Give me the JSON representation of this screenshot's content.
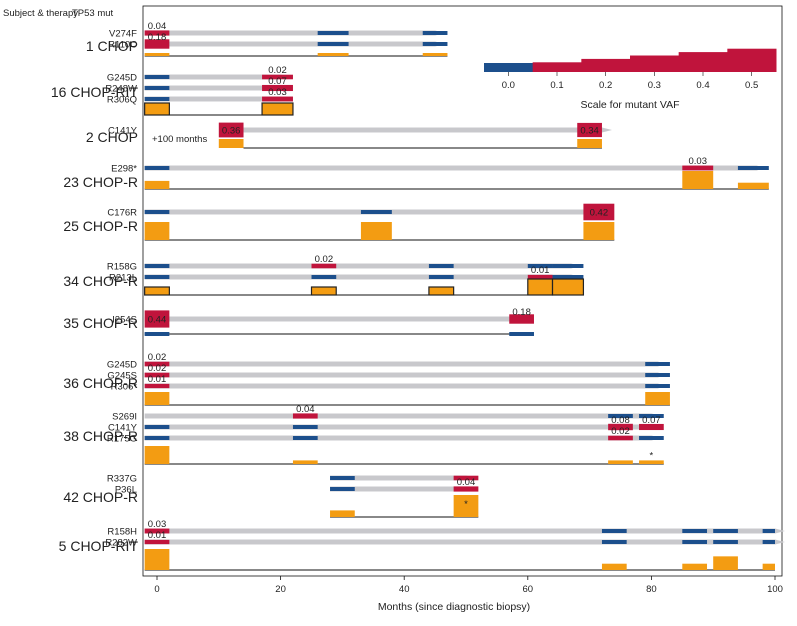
{
  "chart_data": {
    "type": "timeline",
    "header": {
      "subject": "Subject & therapy",
      "mutation": "TP53 mut"
    },
    "xlabel": "Months (since diagnostic biopsy)",
    "xlim": [
      -2,
      100
    ],
    "xticks": [
      0,
      20,
      40,
      60,
      80,
      100
    ],
    "colors": {
      "track": "#c8c8cc",
      "wt": "#1c4f8c",
      "mut": "#c0143c",
      "sample": "#f39c12",
      "axis": "#111111"
    },
    "legend": {
      "title": "Scale for mutant VAF",
      "ticks": [
        "0.0",
        "0.1",
        "0.2",
        "0.3",
        "0.4",
        "0.5"
      ],
      "tick_values": [
        0,
        0.1,
        0.2,
        0.3,
        0.4,
        0.5
      ],
      "range": [
        -0.05,
        0.55
      ],
      "steps": [
        {
          "from": -0.05,
          "to": 0.05,
          "vaf": 0
        },
        {
          "from": 0.05,
          "to": 0.15,
          "vaf": 0.05
        },
        {
          "from": 0.15,
          "to": 0.25,
          "vaf": 0.15
        },
        {
          "from": 0.25,
          "to": 0.35,
          "vaf": 0.25
        },
        {
          "from": 0.35,
          "to": 0.45,
          "vaf": 0.35
        },
        {
          "from": 0.45,
          "to": 0.55,
          "vaf": 0.45
        }
      ]
    },
    "note": "+100 months",
    "patients": [
      {
        "id": "1 CHOP",
        "end": 47,
        "rows": [
          {
            "mut": "V274F",
            "track": [
              -2,
              45
            ],
            "segs": [
              {
                "x0": -2,
                "x1": 2,
                "vaf": 0.04,
                "label": "0.04"
              },
              {
                "x0": 26,
                "x1": 31,
                "vaf": 0
              },
              {
                "x0": 43,
                "x1": 47,
                "vaf": 0
              }
            ]
          },
          {
            "mut": "R110C",
            "track": [
              -2,
              45
            ],
            "segs": [
              {
                "x0": -2,
                "x1": 2,
                "vaf": 0.18,
                "label": "0.18"
              },
              {
                "x0": 26,
                "x1": 31,
                "vaf": 0
              },
              {
                "x0": 43,
                "x1": 47,
                "vaf": 0
              }
            ]
          }
        ],
        "samples": [
          {
            "x0": -2,
            "x1": 2,
            "frac": 0.5
          },
          {
            "x0": 26,
            "x1": 31,
            "frac": 0.5
          },
          {
            "x0": 43,
            "x1": 47,
            "frac": 0.5
          }
        ]
      },
      {
        "id": "16 CHOP-RIT",
        "end": 22,
        "rows": [
          {
            "mut": "G245D",
            "track": [
              -2,
              20
            ],
            "segs": [
              {
                "x0": -2,
                "x1": 2,
                "vaf": 0
              },
              {
                "x0": 17,
                "x1": 22,
                "vaf": 0.02,
                "label": "0.02"
              }
            ]
          },
          {
            "mut": "R248W",
            "track": [
              -2,
              20
            ],
            "segs": [
              {
                "x0": -2,
                "x1": 2,
                "vaf": 0
              },
              {
                "x0": 17,
                "x1": 22,
                "vaf": 0.07,
                "label": "0.07"
              }
            ]
          },
          {
            "mut": "R306Q",
            "track": [
              -2,
              20
            ],
            "segs": [
              {
                "x0": -2,
                "x1": 2,
                "vaf": 0
              },
              {
                "x0": 17,
                "x1": 22,
                "vaf": 0.03,
                "label": "0.03"
              }
            ]
          }
        ],
        "samples": [
          {
            "x0": -2,
            "x1": 2,
            "frac": 1,
            "outline": true
          },
          {
            "x0": 17,
            "x1": 22,
            "frac": 1,
            "outline": true
          }
        ]
      },
      {
        "id": "2 CHOP",
        "start": 14,
        "end": 72,
        "rows": [
          {
            "mut": "C141Y",
            "track": [
              14,
              72
            ],
            "segs": [
              {
                "x0": 10,
                "x1": 14,
                "vaf": 0.36,
                "label": "0.36"
              },
              {
                "x0": 68,
                "x1": 72,
                "vaf": 0.34,
                "label": "0.34"
              }
            ]
          }
        ],
        "samples": [
          {
            "x0": 10,
            "x1": 14,
            "frac": 1
          },
          {
            "x0": 68,
            "x1": 72,
            "frac": 1
          }
        ]
      },
      {
        "id": "23 CHOP-R",
        "end": 99,
        "rows": [
          {
            "mut": "E298*",
            "track": [
              -2,
              97
            ],
            "segs": [
              {
                "x0": -2,
                "x1": 2,
                "vaf": 0
              },
              {
                "x0": 85,
                "x1": 90,
                "vaf": 0.03,
                "label": "0.03"
              },
              {
                "x0": 94,
                "x1": 99,
                "vaf": 0
              }
            ]
          }
        ],
        "samples": [
          {
            "x0": -2,
            "x1": 2,
            "frac": 0.45
          },
          {
            "x0": 85,
            "x1": 90,
            "frac": 1
          },
          {
            "x0": 94,
            "x1": 99,
            "frac": 0.35
          }
        ]
      },
      {
        "id": "25 CHOP-R",
        "end": 74,
        "rows": [
          {
            "mut": "C176R",
            "track": [
              -2,
              72
            ],
            "segs": [
              {
                "x0": -2,
                "x1": 2,
                "vaf": 0
              },
              {
                "x0": 33,
                "x1": 38,
                "vaf": 0
              },
              {
                "x0": 69,
                "x1": 74,
                "vaf": 0.42,
                "label": "0.42"
              }
            ]
          }
        ],
        "samples": [
          {
            "x0": -2,
            "x1": 2,
            "frac": 1
          },
          {
            "x0": 33,
            "x1": 38,
            "frac": 1
          },
          {
            "x0": 69,
            "x1": 74,
            "frac": 1
          }
        ]
      },
      {
        "id": "34 CHOP-R",
        "end": 69,
        "rows": [
          {
            "mut": "R158G",
            "track": [
              -2,
              67
            ],
            "segs": [
              {
                "x0": -2,
                "x1": 2,
                "vaf": 0
              },
              {
                "x0": 25,
                "x1": 29,
                "vaf": 0.02,
                "label": "0.02"
              },
              {
                "x0": 44,
                "x1": 48,
                "vaf": 0
              },
              {
                "x0": 60,
                "x1": 64,
                "vaf": 0
              },
              {
                "x0": 64,
                "x1": 69,
                "vaf": 0
              }
            ]
          },
          {
            "mut": "R213L",
            "track": [
              -2,
              67
            ],
            "segs": [
              {
                "x0": -2,
                "x1": 2,
                "vaf": 0
              },
              {
                "x0": 25,
                "x1": 29,
                "vaf": 0
              },
              {
                "x0": 44,
                "x1": 48,
                "vaf": 0
              },
              {
                "x0": 60,
                "x1": 64,
                "vaf": 0.01,
                "label": "0.01"
              },
              {
                "x0": 64,
                "x1": 69,
                "vaf": 0
              }
            ]
          }
        ],
        "samples": [
          {
            "x0": -2,
            "x1": 2,
            "frac": 0.5,
            "outline": true
          },
          {
            "x0": 25,
            "x1": 29,
            "frac": 0.5,
            "outline": true
          },
          {
            "x0": 44,
            "x1": 48,
            "frac": 0.5,
            "outline": true
          },
          {
            "x0": 60,
            "x1": 64,
            "frac": 1,
            "outline": true
          },
          {
            "x0": 64,
            "x1": 69,
            "frac": 1,
            "outline": true
          }
        ]
      },
      {
        "id": "35 CHOP-R",
        "end": 61,
        "rows": [
          {
            "mut": "I254S",
            "track": [
              -2,
              59
            ],
            "segs": [
              {
                "x0": -2,
                "x1": 2,
                "vaf": 0.44,
                "label": "0.44"
              },
              {
                "x0": 57,
                "x1": 61,
                "vaf": 0.18,
                "label": "0.18"
              }
            ]
          }
        ],
        "lower": [
          {
            "x0": -2,
            "x1": 2
          },
          {
            "x0": 57,
            "x1": 61
          }
        ]
      },
      {
        "id": "36 CHOP-R",
        "end": 83,
        "rows": [
          {
            "mut": "G245D",
            "track": [
              -2,
              81
            ],
            "segs": [
              {
                "x0": -2,
                "x1": 2,
                "vaf": 0.02,
                "label": "0.02"
              },
              {
                "x0": 79,
                "x1": 83,
                "vaf": 0
              }
            ]
          },
          {
            "mut": "G245S",
            "track": [
              -2,
              81
            ],
            "segs": [
              {
                "x0": -2,
                "x1": 2,
                "vaf": 0.02,
                "label": "0.02"
              },
              {
                "x0": 79,
                "x1": 83,
                "vaf": 0
              }
            ]
          },
          {
            "mut": "R306*",
            "track": [
              -2,
              81
            ],
            "segs": [
              {
                "x0": -2,
                "x1": 2,
                "vaf": 0.01,
                "label": "0.01"
              },
              {
                "x0": 79,
                "x1": 83,
                "vaf": 0
              }
            ]
          }
        ],
        "samples": [
          {
            "x0": -2,
            "x1": 2,
            "frac": 1
          },
          {
            "x0": 79,
            "x1": 83,
            "frac": 1
          }
        ]
      },
      {
        "id": "38 CHOP-R",
        "end": 82,
        "rows": [
          {
            "mut": "S269I",
            "track": [
              -2,
              80
            ],
            "segs": [
              {
                "x0": 22,
                "x1": 26,
                "vaf": 0.04,
                "label": "0.04"
              },
              {
                "x0": 73,
                "x1": 77,
                "vaf": 0
              },
              {
                "x0": 78,
                "x1": 82,
                "vaf": 0
              }
            ]
          },
          {
            "mut": "C141Y",
            "track": [
              -2,
              80
            ],
            "segs": [
              {
                "x0": -2,
                "x1": 2,
                "vaf": 0
              },
              {
                "x0": 22,
                "x1": 26,
                "vaf": 0
              },
              {
                "x0": 73,
                "x1": 77,
                "vaf": 0.08,
                "label": "0.08"
              },
              {
                "x0": 78,
                "x1": 82,
                "vaf": 0.07,
                "label": "0.07"
              }
            ]
          },
          {
            "mut": "R175G",
            "track": [
              -2,
              80
            ],
            "segs": [
              {
                "x0": -2,
                "x1": 2,
                "vaf": 0
              },
              {
                "x0": 22,
                "x1": 26,
                "vaf": 0
              },
              {
                "x0": 73,
                "x1": 77,
                "vaf": 0.02,
                "label": "0.02"
              },
              {
                "x0": 78,
                "x1": 82,
                "vaf": 0
              }
            ]
          }
        ],
        "samples": [
          {
            "x0": -2,
            "x1": 2,
            "frac": 1
          },
          {
            "x0": 22,
            "x1": 26,
            "frac": 0.2
          },
          {
            "x0": 73,
            "x1": 77,
            "frac": 0.2
          },
          {
            "x0": 78,
            "x1": 82,
            "frac": 0.2,
            "star": "*"
          }
        ]
      },
      {
        "id": "42 CHOP-R",
        "start": 28,
        "end": 52,
        "rows": [
          {
            "mut": "R337G",
            "track": [
              28,
              50
            ],
            "segs": [
              {
                "x0": 28,
                "x1": 32,
                "vaf": 0
              },
              {
                "x0": 48,
                "x1": 52,
                "vaf": 0.02
              }
            ]
          },
          {
            "mut": "P36L",
            "track": [
              28,
              50
            ],
            "segs": [
              {
                "x0": 28,
                "x1": 32,
                "vaf": 0
              },
              {
                "x0": 48,
                "x1": 52,
                "vaf": 0.04,
                "label": "0.04"
              }
            ]
          }
        ],
        "samples": [
          {
            "x0": 28,
            "x1": 32,
            "frac": 0.3
          },
          {
            "x0": 48,
            "x1": 52,
            "frac": 1,
            "star": "*"
          }
        ]
      },
      {
        "id": "5 CHOP-RIT",
        "end": 100,
        "rows": [
          {
            "mut": "R158H",
            "track": [
              -2,
              100
            ],
            "segs": [
              {
                "x0": -2,
                "x1": 2,
                "vaf": 0.03,
                "label": "0.03"
              },
              {
                "x0": 72,
                "x1": 76,
                "vaf": 0
              },
              {
                "x0": 85,
                "x1": 89,
                "vaf": 0
              },
              {
                "x0": 90,
                "x1": 94,
                "vaf": 0
              },
              {
                "x0": 98,
                "x1": 100,
                "vaf": 0
              }
            ]
          },
          {
            "mut": "R282W",
            "track": [
              -2,
              100
            ],
            "segs": [
              {
                "x0": -2,
                "x1": 2,
                "vaf": 0.01,
                "label": "0.01"
              },
              {
                "x0": 72,
                "x1": 76,
                "vaf": 0
              },
              {
                "x0": 85,
                "x1": 89,
                "vaf": 0
              },
              {
                "x0": 90,
                "x1": 94,
                "vaf": 0
              },
              {
                "x0": 98,
                "x1": 100,
                "vaf": 0
              }
            ]
          }
        ],
        "samples": [
          {
            "x0": -2,
            "x1": 2,
            "frac": 1
          },
          {
            "x0": 72,
            "x1": 76,
            "frac": 0.3
          },
          {
            "x0": 85,
            "x1": 89,
            "frac": 0.3
          },
          {
            "x0": 90,
            "x1": 94,
            "frac": 0.65
          },
          {
            "x0": 98,
            "x1": 100,
            "frac": 0.3
          }
        ]
      }
    ]
  }
}
